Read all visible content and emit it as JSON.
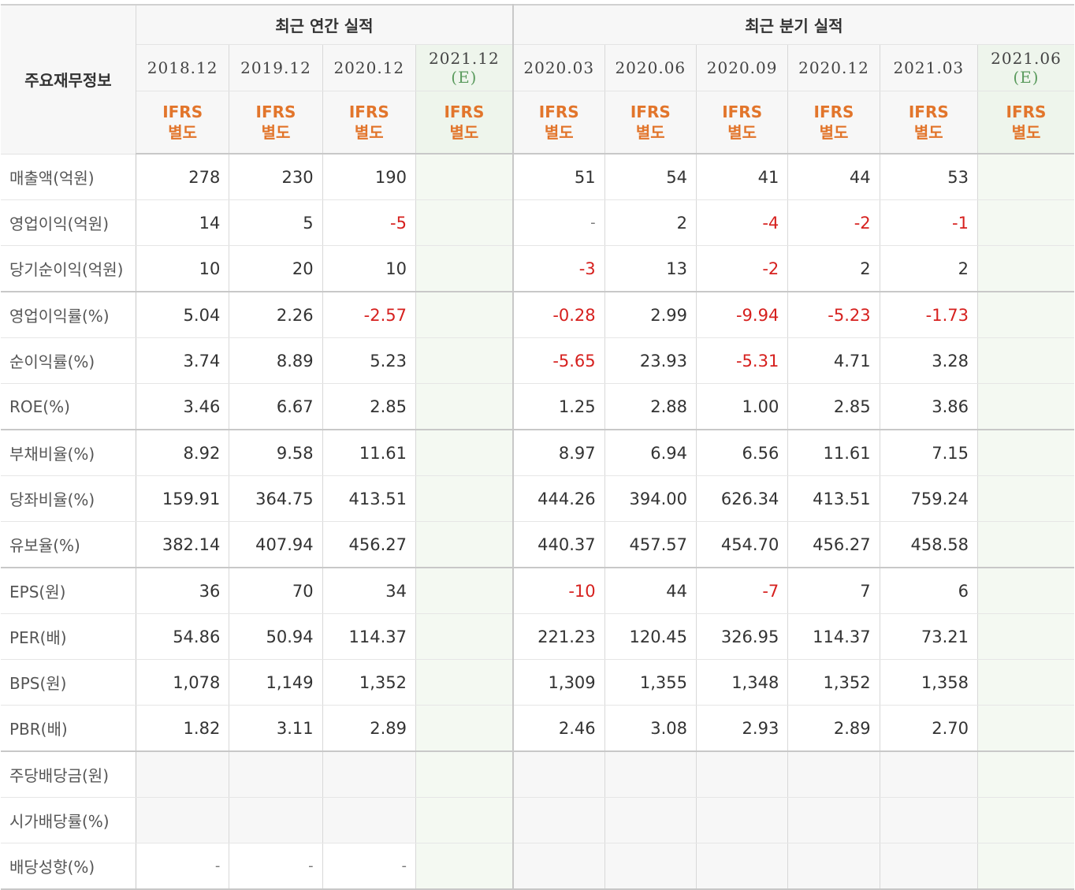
{
  "corner_label": "주요재무정보",
  "groups": {
    "annual": "최근 연간 실적",
    "quarterly": "최근 분기 실적"
  },
  "periods": [
    {
      "date": "2018.12",
      "note": "",
      "accounting": "IFRS\n별도"
    },
    {
      "date": "2019.12",
      "note": "",
      "accounting": "IFRS\n별도"
    },
    {
      "date": "2020.12",
      "note": "",
      "accounting": "IFRS\n별도"
    },
    {
      "date": "2021.12",
      "note": "(E)",
      "accounting": "IFRS\n별도"
    },
    {
      "date": "2020.03",
      "note": "",
      "accounting": "IFRS\n별도"
    },
    {
      "date": "2020.06",
      "note": "",
      "accounting": "IFRS\n별도"
    },
    {
      "date": "2020.09",
      "note": "",
      "accounting": "IFRS\n별도"
    },
    {
      "date": "2020.12",
      "note": "",
      "accounting": "IFRS\n별도"
    },
    {
      "date": "2021.03",
      "note": "",
      "accounting": "IFRS\n별도"
    },
    {
      "date": "2021.06",
      "note": "(E)",
      "accounting": "IFRS\n별도"
    }
  ],
  "rows": [
    {
      "label": "매출액(억원)",
      "values": [
        "278",
        "230",
        "190",
        "",
        "51",
        "54",
        "41",
        "44",
        "53",
        ""
      ]
    },
    {
      "label": "영업이익(억원)",
      "values": [
        "14",
        "5",
        "-5",
        "",
        "-",
        "2",
        "-4",
        "-2",
        "-1",
        ""
      ]
    },
    {
      "label": "당기순이익(억원)",
      "values": [
        "10",
        "20",
        "10",
        "",
        "-3",
        "13",
        "-2",
        "2",
        "2",
        ""
      ]
    },
    {
      "label": "영업이익률(%)",
      "values": [
        "5.04",
        "2.26",
        "-2.57",
        "",
        "-0.28",
        "2.99",
        "-9.94",
        "-5.23",
        "-1.73",
        ""
      ]
    },
    {
      "label": "순이익률(%)",
      "values": [
        "3.74",
        "8.89",
        "5.23",
        "",
        "-5.65",
        "23.93",
        "-5.31",
        "4.71",
        "3.28",
        ""
      ]
    },
    {
      "label": "ROE(%)",
      "values": [
        "3.46",
        "6.67",
        "2.85",
        "",
        "1.25",
        "2.88",
        "1.00",
        "2.85",
        "3.86",
        ""
      ]
    },
    {
      "label": "부채비율(%)",
      "values": [
        "8.92",
        "9.58",
        "11.61",
        "",
        "8.97",
        "6.94",
        "6.56",
        "11.61",
        "7.15",
        ""
      ]
    },
    {
      "label": "당좌비율(%)",
      "values": [
        "159.91",
        "364.75",
        "413.51",
        "",
        "444.26",
        "394.00",
        "626.34",
        "413.51",
        "759.24",
        ""
      ]
    },
    {
      "label": "유보율(%)",
      "values": [
        "382.14",
        "407.94",
        "456.27",
        "",
        "440.37",
        "457.57",
        "454.70",
        "456.27",
        "458.58",
        ""
      ]
    },
    {
      "label": "EPS(원)",
      "values": [
        "36",
        "70",
        "34",
        "",
        "-10",
        "44",
        "-7",
        "7",
        "6",
        ""
      ]
    },
    {
      "label": "PER(배)",
      "values": [
        "54.86",
        "50.94",
        "114.37",
        "",
        "221.23",
        "120.45",
        "326.95",
        "114.37",
        "73.21",
        ""
      ]
    },
    {
      "label": "BPS(원)",
      "values": [
        "1,078",
        "1,149",
        "1,352",
        "",
        "1,309",
        "1,355",
        "1,348",
        "1,352",
        "1,358",
        ""
      ]
    },
    {
      "label": "PBR(배)",
      "values": [
        "1.82",
        "3.11",
        "2.89",
        "",
        "2.46",
        "3.08",
        "2.93",
        "2.89",
        "2.70",
        ""
      ]
    },
    {
      "label": "주당배당금(원)",
      "values": [
        "",
        "",
        "",
        "",
        "",
        "",
        "",
        "",
        "",
        ""
      ]
    },
    {
      "label": "시가배당률(%)",
      "values": [
        "",
        "",
        "",
        "",
        "",
        "",
        "",
        "",
        "",
        ""
      ]
    },
    {
      "label": "배당성향(%)",
      "values": [
        "-",
        "-",
        "-",
        "",
        "",
        "",
        "",
        "",
        "",
        ""
      ]
    }
  ],
  "colors": {
    "negative": "#d6201e",
    "accounting_label": "#e2752b",
    "estimate_note": "#5b9b5e",
    "estimate_column_bg": "#f4f9f2",
    "header_bg": "#f7f7f7"
  }
}
